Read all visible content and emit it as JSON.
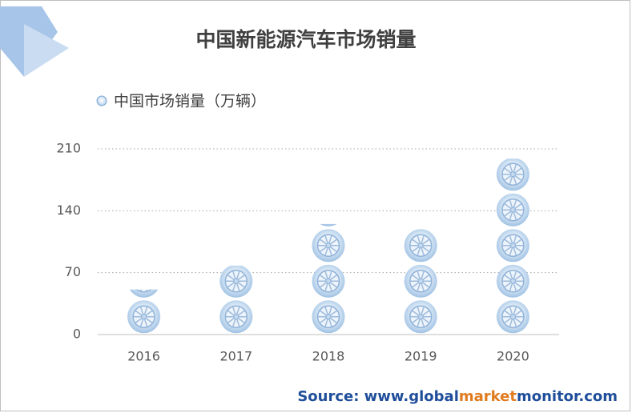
{
  "chart_data": {
    "type": "pictograph",
    "title": "中国新能源汽车市场销量",
    "categories": [
      "2016",
      "2017",
      "2018",
      "2019",
      "2020"
    ],
    "series": [
      {
        "name": "中国市场销量（万辆）",
        "color": "#a9c8e8",
        "values": [
          51,
          78,
          125,
          121,
          199
        ]
      }
    ],
    "ylim": [
      0,
      210
    ],
    "yticks": [
      0,
      70,
      140,
      210
    ],
    "grid": true,
    "source": [
      "Source: www.",
      "global",
      "market",
      "monitor",
      ".com"
    ]
  }
}
